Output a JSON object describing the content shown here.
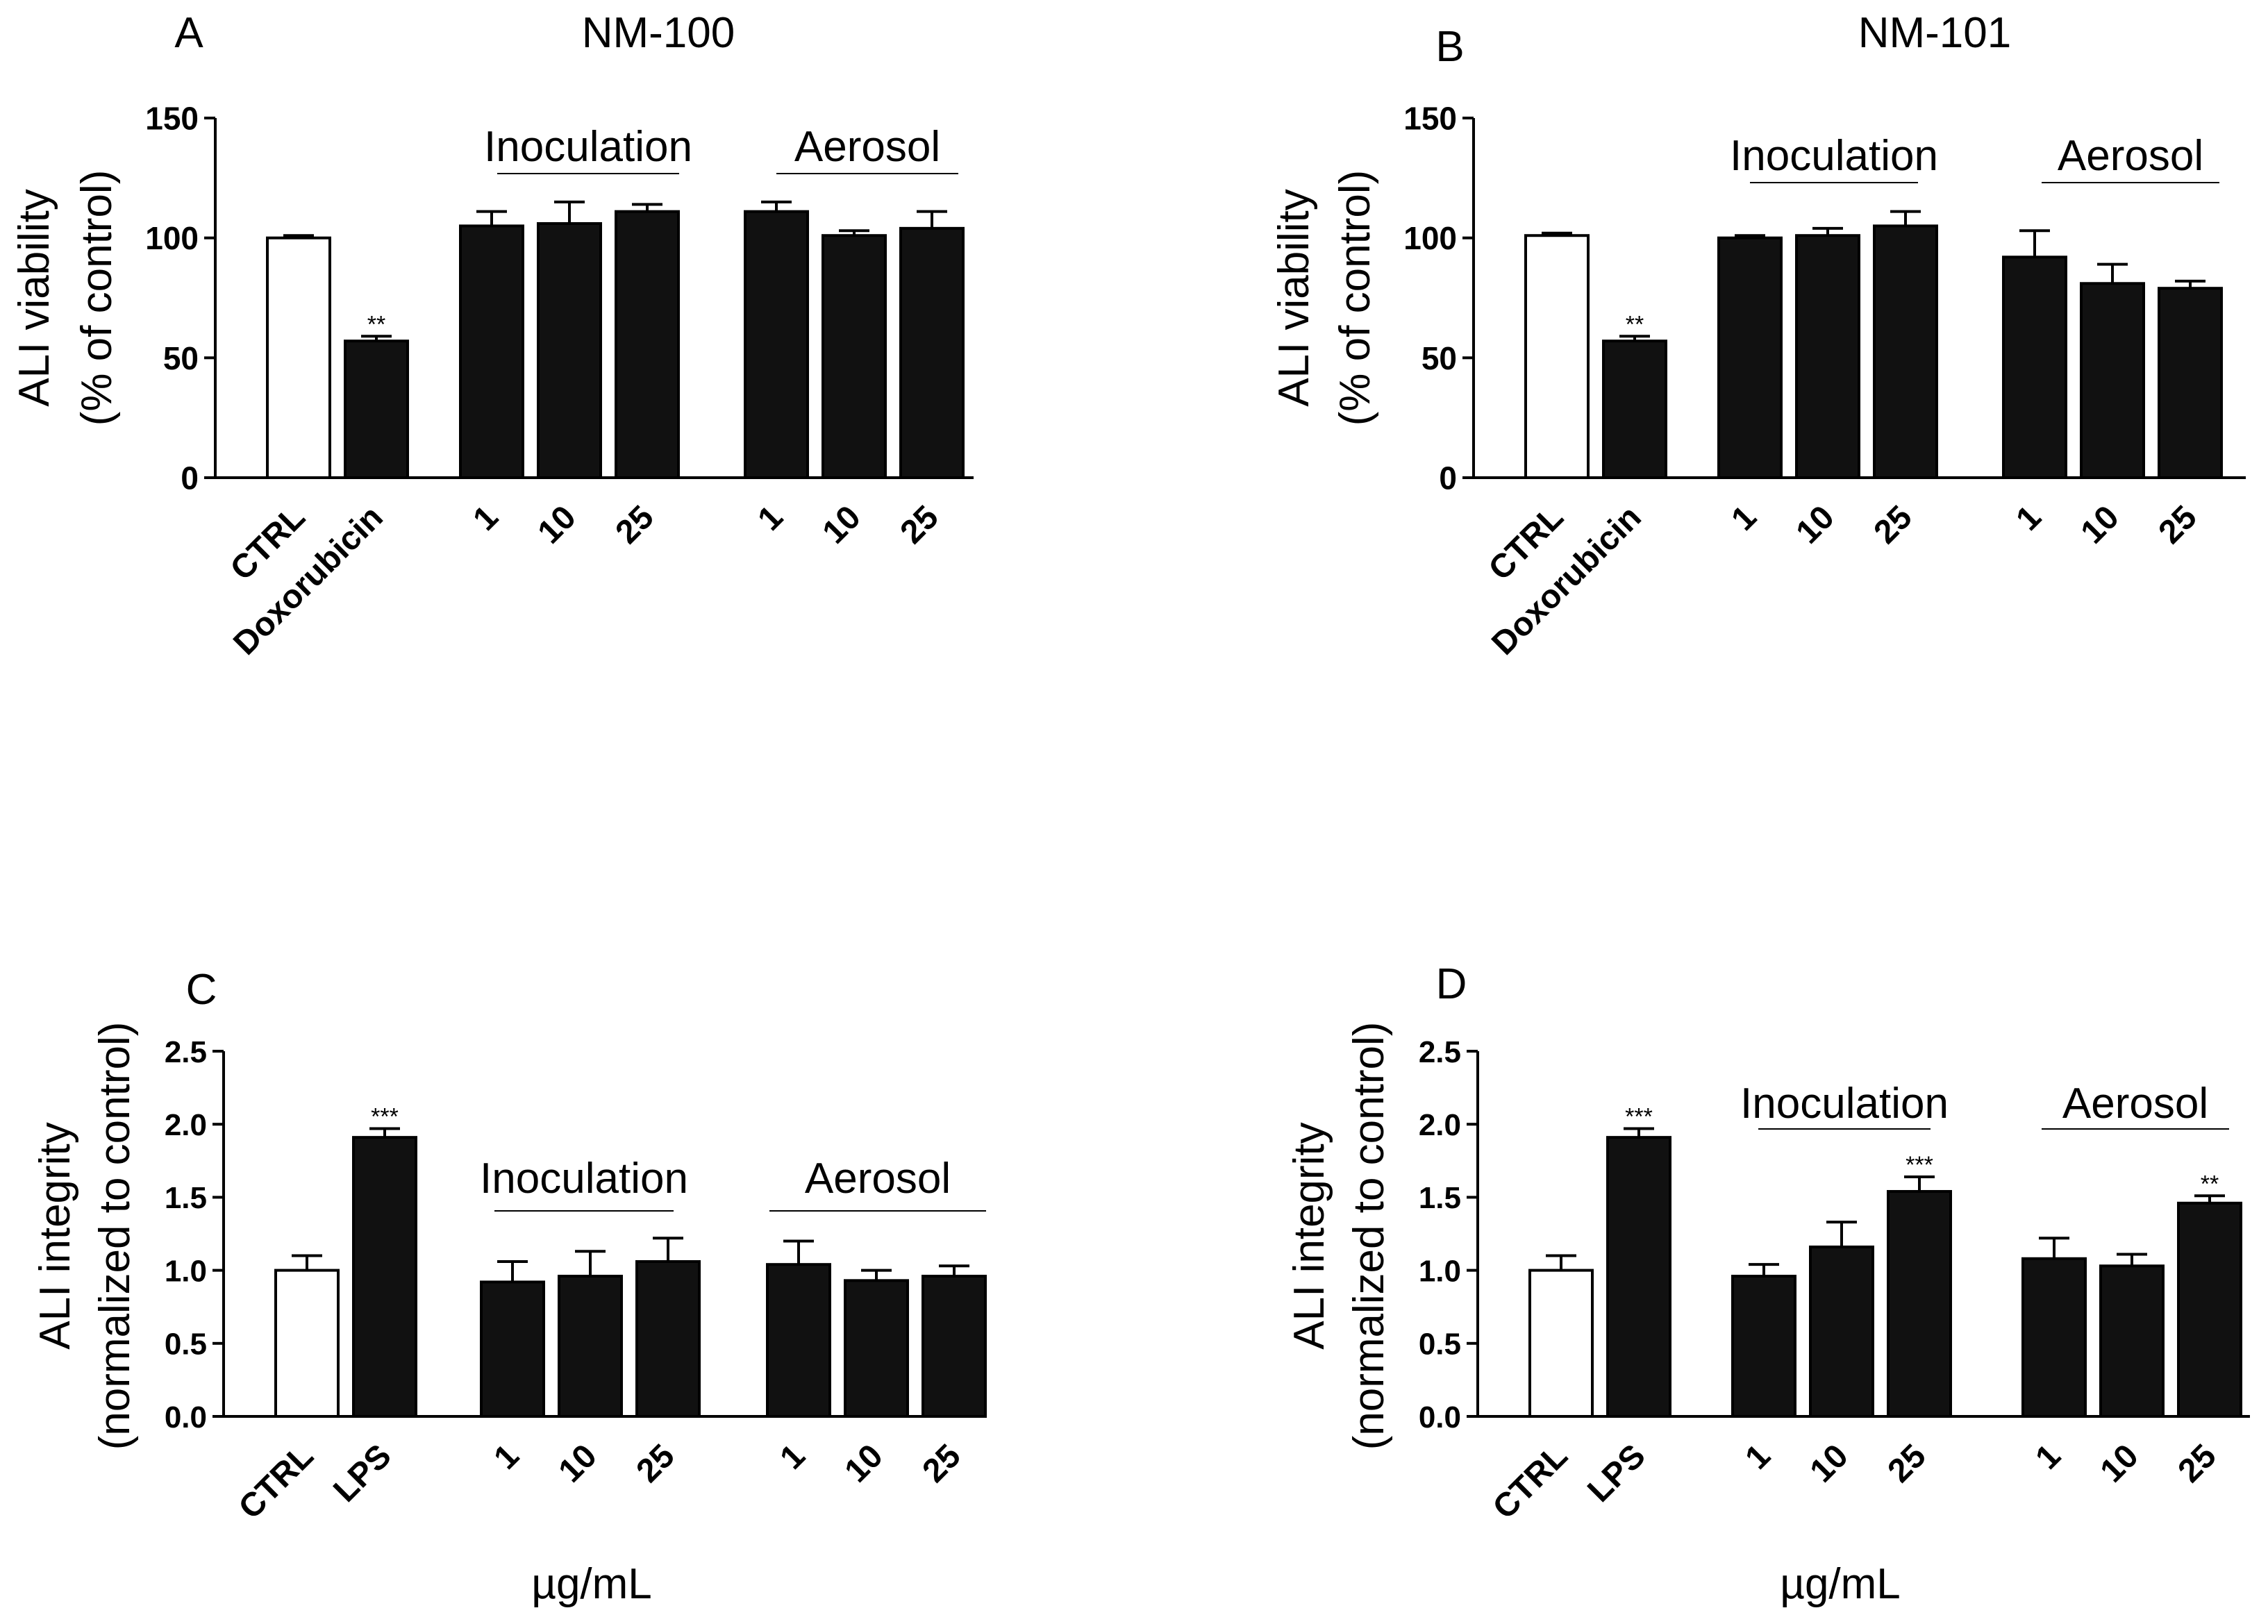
{
  "panel_styles": {
    "bar_fill": "#111111",
    "control_fill": "#ffffff",
    "stroke": "#000000"
  },
  "chart_data": [
    {
      "panel_letter": "A",
      "title": "NM-100",
      "type": "bar",
      "ylabel": [
        "ALI viability",
        "(% of control)"
      ],
      "xlabel": "",
      "ylim": [
        0,
        150
      ],
      "yticks": [
        "0",
        "50",
        "100",
        "150"
      ],
      "groups": [
        {
          "label": "",
          "bars": [
            {
              "label": "CTRL",
              "value": 100,
              "error": 1,
              "control": true,
              "sig": ""
            },
            {
              "label": "Doxorubicin",
              "value": 57,
              "error": 2,
              "control": false,
              "sig": "**"
            }
          ]
        },
        {
          "label": "Inoculation",
          "bars": [
            {
              "label": "1",
              "value": 105,
              "error": 6,
              "control": false,
              "sig": ""
            },
            {
              "label": "10",
              "value": 106,
              "error": 9,
              "control": false,
              "sig": ""
            },
            {
              "label": "25",
              "value": 111,
              "error": 3,
              "control": false,
              "sig": ""
            }
          ]
        },
        {
          "label": "Aerosol",
          "bars": [
            {
              "label": "1",
              "value": 111,
              "error": 4,
              "control": false,
              "sig": ""
            },
            {
              "label": "10",
              "value": 101,
              "error": 2,
              "control": false,
              "sig": ""
            },
            {
              "label": "25",
              "value": 104,
              "error": 7,
              "control": false,
              "sig": ""
            }
          ]
        }
      ]
    },
    {
      "panel_letter": "B",
      "title": "NM-101",
      "type": "bar",
      "ylabel": [
        "ALI viability",
        "(% of control)"
      ],
      "xlabel": "",
      "ylim": [
        0,
        150
      ],
      "yticks": [
        "0",
        "50",
        "100",
        "150"
      ],
      "groups": [
        {
          "label": "",
          "bars": [
            {
              "label": "CTRL",
              "value": 101,
              "error": 1,
              "control": true,
              "sig": ""
            },
            {
              "label": "Doxorubicin",
              "value": 57,
              "error": 2,
              "control": false,
              "sig": "**"
            }
          ]
        },
        {
          "label": "Inoculation",
          "bars": [
            {
              "label": "1",
              "value": 100,
              "error": 1,
              "control": false,
              "sig": ""
            },
            {
              "label": "10",
              "value": 101,
              "error": 3,
              "control": false,
              "sig": ""
            },
            {
              "label": "25",
              "value": 105,
              "error": 6,
              "control": false,
              "sig": ""
            }
          ]
        },
        {
          "label": "Aerosol",
          "bars": [
            {
              "label": "1",
              "value": 92,
              "error": 11,
              "control": false,
              "sig": ""
            },
            {
              "label": "10",
              "value": 81,
              "error": 8,
              "control": false,
              "sig": ""
            },
            {
              "label": "25",
              "value": 79,
              "error": 3,
              "control": false,
              "sig": ""
            }
          ]
        }
      ]
    },
    {
      "panel_letter": "C",
      "title": "",
      "type": "bar",
      "ylabel": [
        "ALI integrity",
        "(normalized to control)"
      ],
      "xlabel": "µg/mL",
      "ylim": [
        0,
        2.5
      ],
      "yticks": [
        "0.0",
        "0.5",
        "1.0",
        "1.5",
        "2.0",
        "2.5"
      ],
      "groups": [
        {
          "label": "",
          "bars": [
            {
              "label": "CTRL",
              "value": 1.0,
              "error": 0.1,
              "control": true,
              "sig": ""
            },
            {
              "label": "LPS",
              "value": 1.91,
              "error": 0.06,
              "control": false,
              "sig": "***"
            }
          ]
        },
        {
          "label": "Inoculation",
          "bars": [
            {
              "label": "1",
              "value": 0.92,
              "error": 0.14,
              "control": false,
              "sig": ""
            },
            {
              "label": "10",
              "value": 0.96,
              "error": 0.17,
              "control": false,
              "sig": ""
            },
            {
              "label": "25",
              "value": 1.06,
              "error": 0.16,
              "control": false,
              "sig": ""
            }
          ]
        },
        {
          "label": "Aerosol",
          "bars": [
            {
              "label": "1",
              "value": 1.04,
              "error": 0.16,
              "control": false,
              "sig": ""
            },
            {
              "label": "10",
              "value": 0.93,
              "error": 0.07,
              "control": false,
              "sig": ""
            },
            {
              "label": "25",
              "value": 0.96,
              "error": 0.07,
              "control": false,
              "sig": ""
            }
          ]
        }
      ]
    },
    {
      "panel_letter": "D",
      "title": "",
      "type": "bar",
      "ylabel": [
        "ALI integrity",
        "(normalized to control)"
      ],
      "xlabel": "µg/mL",
      "ylim": [
        0,
        2.5
      ],
      "yticks": [
        "0.0",
        "0.5",
        "1.0",
        "1.5",
        "2.0",
        "2.5"
      ],
      "groups": [
        {
          "label": "",
          "bars": [
            {
              "label": "CTRL",
              "value": 1.0,
              "error": 0.1,
              "control": true,
              "sig": ""
            },
            {
              "label": "LPS",
              "value": 1.91,
              "error": 0.06,
              "control": false,
              "sig": "***"
            }
          ]
        },
        {
          "label": "Inoculation",
          "bars": [
            {
              "label": "1",
              "value": 0.96,
              "error": 0.08,
              "control": false,
              "sig": ""
            },
            {
              "label": "10",
              "value": 1.16,
              "error": 0.17,
              "control": false,
              "sig": ""
            },
            {
              "label": "25",
              "value": 1.54,
              "error": 0.1,
              "control": false,
              "sig": "***"
            }
          ]
        },
        {
          "label": "Aerosol",
          "bars": [
            {
              "label": "1",
              "value": 1.08,
              "error": 0.14,
              "control": false,
              "sig": ""
            },
            {
              "label": "10",
              "value": 1.03,
              "error": 0.08,
              "control": false,
              "sig": ""
            },
            {
              "label": "25",
              "value": 1.46,
              "error": 0.05,
              "control": false,
              "sig": "**"
            }
          ]
        }
      ]
    }
  ]
}
